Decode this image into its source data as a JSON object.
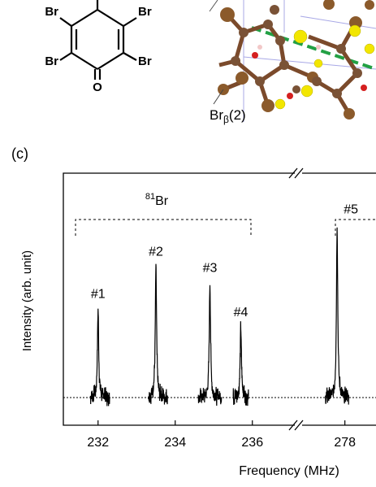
{
  "top_structure": {
    "substituents": [
      "Br",
      "Br",
      "Br",
      "Br"
    ],
    "oxygen": "O"
  },
  "crystal_label": {
    "main": "Br",
    "subscript": "β",
    "suffix": "(2)"
  },
  "panel_label": "(c)",
  "chart_data": {
    "type": "line",
    "xlabel": "Frequency (MHz)",
    "ylabel": "Intensity (arb. unit)",
    "x_ticks_left": [
      "232",
      "234",
      "236"
    ],
    "x_ticks_right": [
      "278"
    ],
    "x_ranges": [
      [
        231.1,
        237.1
      ],
      [
        276.9,
        278.8
      ]
    ],
    "y_range": [
      0,
      1.22
    ],
    "baseline": 0,
    "group_label": {
      "isotope": "81",
      "element": "Br"
    },
    "peaks": [
      {
        "label": "#1",
        "x": 232.0,
        "intensity": 0.48
      },
      {
        "label": "#2",
        "x": 233.5,
        "intensity": 0.71
      },
      {
        "label": "#3",
        "x": 234.9,
        "intensity": 0.62
      },
      {
        "label": "#4",
        "x": 235.7,
        "intensity": 0.38
      },
      {
        "label": "#5",
        "x": 277.8,
        "intensity": 0.94
      }
    ],
    "series": [
      {
        "x": [
          231.8,
          232.0,
          232.3
        ],
        "y": [
          0,
          0.48,
          0
        ]
      },
      {
        "x": [
          233.3,
          233.5,
          233.8
        ],
        "y": [
          0,
          0.71,
          0
        ]
      },
      {
        "x": [
          234.6,
          234.9,
          235.2
        ],
        "y": [
          0,
          0.62,
          0
        ]
      },
      {
        "x": [
          235.5,
          235.7,
          235.9
        ],
        "y": [
          0,
          0.38,
          0
        ]
      },
      {
        "x": [
          277.5,
          277.8,
          278.1
        ],
        "y": [
          0,
          0.94,
          0
        ]
      }
    ]
  }
}
